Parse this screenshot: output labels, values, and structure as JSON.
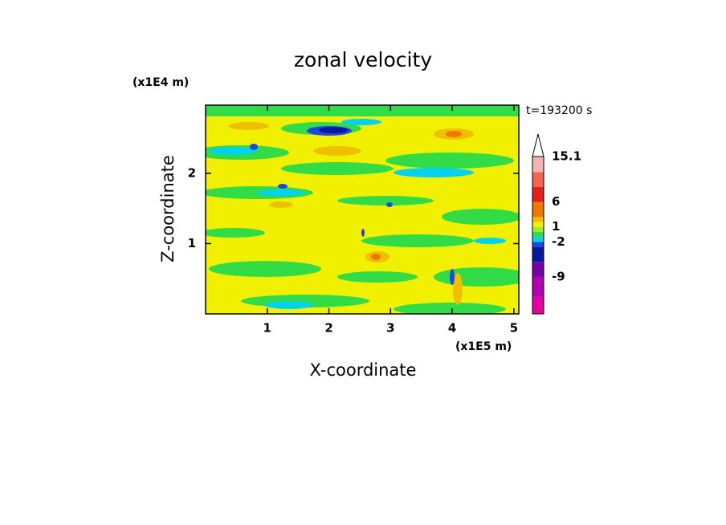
{
  "chart_data": {
    "type": "contour",
    "title": "zonal velocity",
    "x_label": "X-coordinate",
    "y_label": "Z-coordinate",
    "x_unit": "(x1E5 m)",
    "y_unit": "(x1E4 m)",
    "time_label": "t=193200 s",
    "xlim": [
      0,
      5.08
    ],
    "ylim": [
      0,
      2.97
    ],
    "xticks": [
      1,
      2,
      3,
      4,
      5
    ],
    "yticks": [
      1,
      2
    ],
    "colorbar": {
      "clim": [
        -16.4,
        15.1
      ],
      "levels": [
        -13,
        -9,
        -6,
        -3,
        -2,
        -1,
        0,
        1,
        2,
        3,
        6,
        9,
        12,
        15.1
      ],
      "colors": [
        "#e600a0",
        "#b400b4",
        "#7800aa",
        "#0a18a0",
        "#1e46e6",
        "#00d2f0",
        "#32dc46",
        "#a0e632",
        "#f0f000",
        "#f0c000",
        "#f07800",
        "#e61e1e",
        "#f06450",
        "#f5b4b4",
        "#ffffff"
      ],
      "ticks": [
        15.1,
        6,
        1,
        -2,
        -9
      ]
    }
  }
}
